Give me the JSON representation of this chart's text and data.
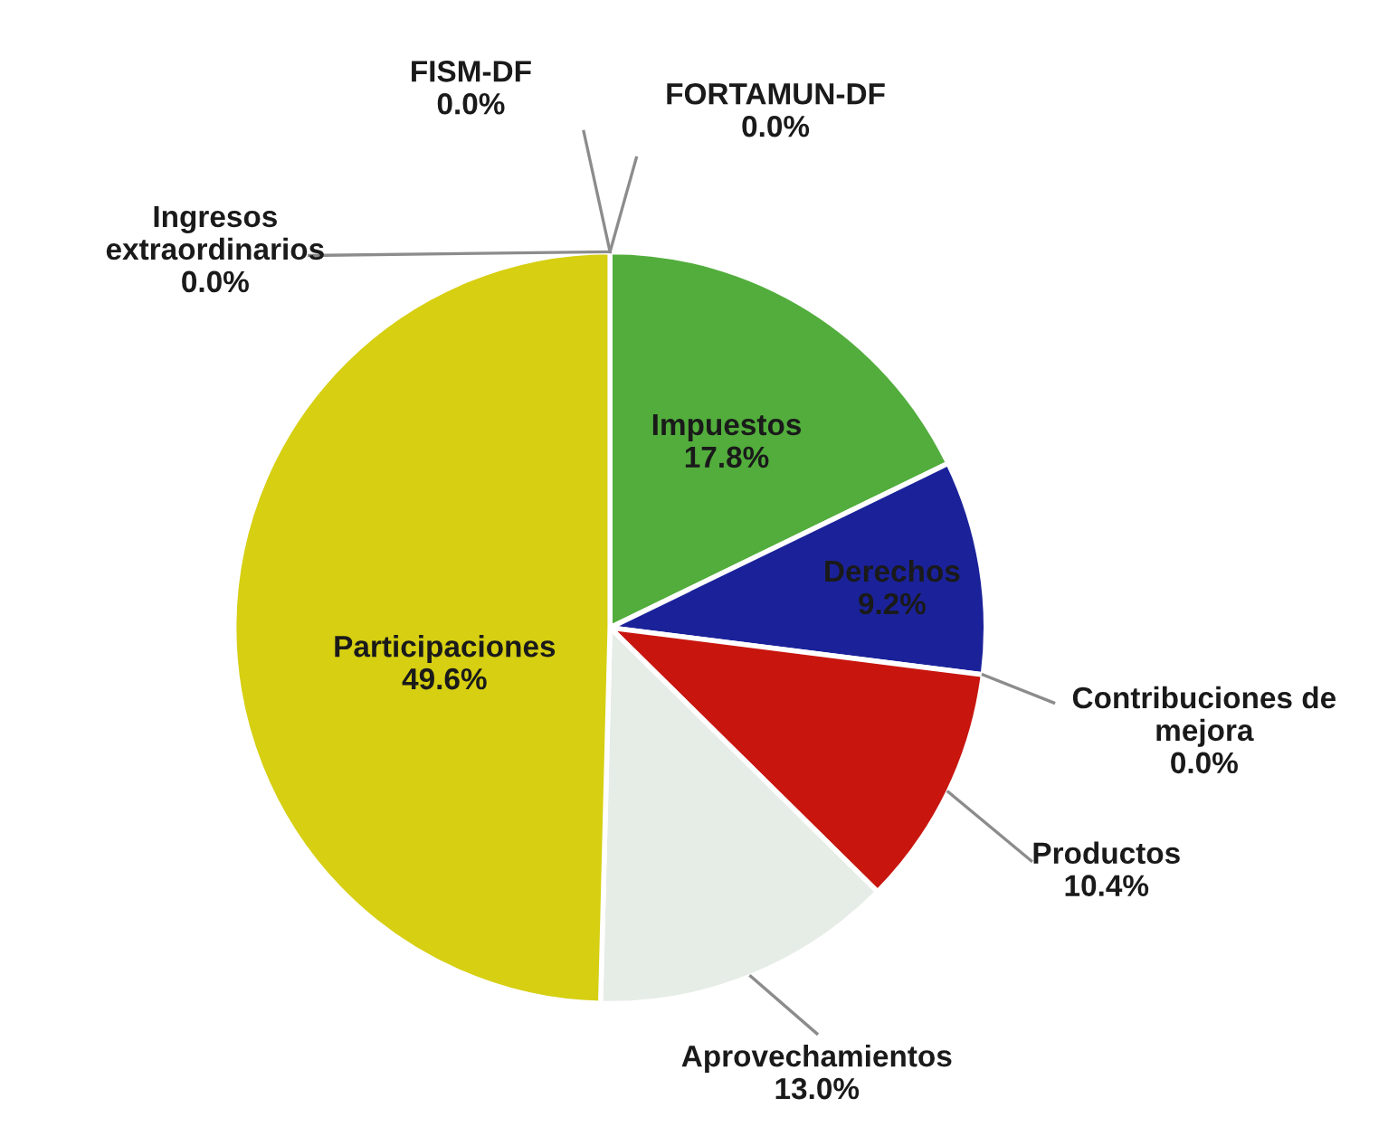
{
  "chart_data": {
    "type": "pie",
    "categories": [
      "Impuestos",
      "Derechos",
      "Contribuciones de mejora",
      "Productos",
      "Aprovechamientos",
      "Participaciones",
      "Ingresos extraordinarios",
      "FISM-DF",
      "FORTAMUN-DF"
    ],
    "values": [
      17.8,
      9.2,
      0.0,
      10.4,
      13.0,
      49.6,
      0.0,
      0.0,
      0.0
    ],
    "value_labels": [
      "17.8%",
      "9.2%",
      "0.0%",
      "10.4%",
      "13.0%",
      "49.6%",
      "0.0%",
      "0.0%",
      "0.0%"
    ],
    "colors": [
      "#52ad3c",
      "#1b2299",
      "#8a8a8a",
      "#c8160f",
      "#e6ece6",
      "#d6cf12",
      "#8a8a8a",
      "#8a8a8a",
      "#8a8a8a"
    ]
  }
}
